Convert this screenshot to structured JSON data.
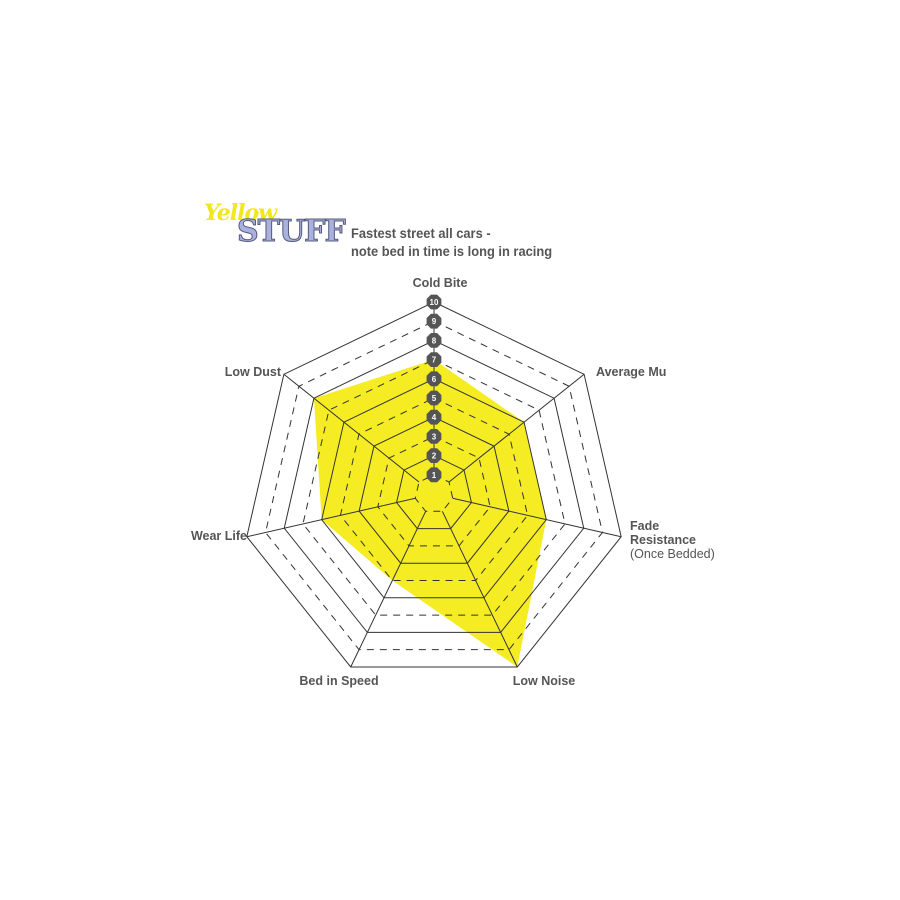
{
  "logo": {
    "line1": "Yellow",
    "line2": "STUFF"
  },
  "title": {
    "line1": "Fastest street all cars -",
    "line2": "note bed in time is long in racing"
  },
  "chart_data": {
    "type": "radar",
    "axes": [
      "Cold Bite",
      "Average Mu",
      "Fade Resistance (Once Bedded)",
      "Low Noise",
      "Bed in Speed",
      "Wear Life",
      "Low Dust"
    ],
    "axis_labels": [
      [
        "Cold Bite"
      ],
      [
        "Average Mu"
      ],
      [
        "Fade",
        "Resistance",
        "(Once Bedded)"
      ],
      [
        "Low Noise"
      ],
      [
        "Bed in Speed"
      ],
      [
        "Wear Life"
      ],
      [
        "Low Dust"
      ]
    ],
    "values": [
      7,
      6,
      6,
      10,
      5,
      6,
      8
    ],
    "range": [
      0,
      10
    ],
    "tick_labels": [
      "1",
      "2",
      "3",
      "4",
      "5",
      "6",
      "7",
      "8",
      "9",
      "10"
    ],
    "fill_color": "#f5ec24",
    "grid_color": "#333333",
    "badge_color": "#555555"
  }
}
